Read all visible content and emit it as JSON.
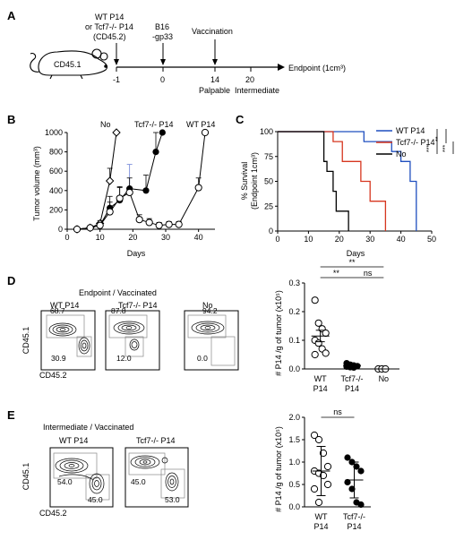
{
  "panel_letters": [
    "A",
    "B",
    "C",
    "D",
    "E"
  ],
  "panelA": {
    "mouse_label": "CD45.1",
    "timeline_labels": [
      {
        "day": -1,
        "top": [
          "WT P14",
          "or Tcf7-/- P14",
          "(CD45.2)"
        ],
        "bottom": "-1"
      },
      {
        "day": 0,
        "top": [
          "B16",
          "-gp33"
        ],
        "bottom": "0"
      },
      {
        "day": 14,
        "top": [
          "Vaccination"
        ],
        "bottom": "14",
        "below": "Palpable"
      },
      {
        "day": 20,
        "top": [],
        "bottom": "20",
        "below": "Intermediate"
      }
    ],
    "endpoint_label": "Endpoint (1cm³)"
  },
  "chart_data": [
    {
      "panel": "B",
      "type": "line",
      "xlabel": "Days",
      "ylabel": "Tumor volume (mm³)",
      "xlim": [
        0,
        45
      ],
      "ylim": [
        0,
        1000
      ],
      "xticks": [
        0,
        10,
        20,
        30,
        40
      ],
      "yticks": [
        0,
        200,
        400,
        600,
        800,
        1000
      ],
      "series_labels": [
        "No",
        "Tcf7-/- P14",
        "WT P14"
      ],
      "series": [
        {
          "name": "No",
          "marker": "diamond-open",
          "x": [
            3,
            7,
            10,
            13,
            15
          ],
          "y": [
            0,
            15,
            60,
            500,
            1000
          ],
          "err": [
            0,
            10,
            30,
            130,
            0
          ]
        },
        {
          "name": "Tcf7-/- P14",
          "marker": "circle-filled",
          "x": [
            3,
            7,
            10,
            13,
            16,
            19,
            24,
            27,
            29
          ],
          "y": [
            0,
            15,
            40,
            220,
            300,
            420,
            400,
            800,
            1000
          ],
          "err": [
            0,
            10,
            20,
            120,
            130,
            250,
            160,
            200,
            0
          ]
        },
        {
          "name": "WT P14",
          "marker": "circle-open",
          "x": [
            3,
            7,
            10,
            13,
            16,
            19,
            22,
            25,
            28,
            31,
            34,
            40,
            42
          ],
          "y": [
            0,
            15,
            40,
            180,
            320,
            380,
            100,
            70,
            40,
            50,
            50,
            430,
            1000
          ],
          "err": [
            0,
            10,
            20,
            100,
            120,
            150,
            50,
            40,
            30,
            30,
            30,
            100,
            0
          ]
        }
      ]
    },
    {
      "panel": "C",
      "type": "line",
      "xlabel": "Days",
      "ylabel": "% Survival (Endpoint 1cm³)",
      "xlim": [
        0,
        50
      ],
      "ylim": [
        0,
        100
      ],
      "xticks": [
        0,
        10,
        20,
        30,
        40,
        50
      ],
      "yticks": [
        0,
        25,
        50,
        75,
        100
      ],
      "legend": [
        "WT P14",
        "Tcf7-/- P14",
        "No"
      ],
      "significance": [
        "***",
        "**",
        "***"
      ],
      "series": [
        {
          "name": "WT P14",
          "color": "#1f4fbf",
          "steps": [
            [
              0,
              100
            ],
            [
              28,
              100
            ],
            [
              28,
              90
            ],
            [
              37,
              90
            ],
            [
              37,
              80
            ],
            [
              40,
              80
            ],
            [
              40,
              70
            ],
            [
              43,
              70
            ],
            [
              43,
              50
            ],
            [
              45,
              50
            ],
            [
              45,
              0
            ]
          ]
        },
        {
          "name": "Tcf7-/- P14",
          "color": "#d6361f",
          "steps": [
            [
              0,
              100
            ],
            [
              18,
              100
            ],
            [
              18,
              90
            ],
            [
              21,
              90
            ],
            [
              21,
              70
            ],
            [
              27,
              70
            ],
            [
              27,
              50
            ],
            [
              30,
              50
            ],
            [
              30,
              30
            ],
            [
              35,
              30
            ],
            [
              35,
              0
            ]
          ]
        },
        {
          "name": "No",
          "color": "#000000",
          "steps": [
            [
              0,
              100
            ],
            [
              15,
              100
            ],
            [
              15,
              70
            ],
            [
              16,
              70
            ],
            [
              16,
              60
            ],
            [
              18,
              60
            ],
            [
              18,
              40
            ],
            [
              19,
              40
            ],
            [
              19,
              20
            ],
            [
              23,
              20
            ],
            [
              23,
              0
            ]
          ]
        }
      ]
    },
    {
      "panel": "D",
      "type": "scatter",
      "ylabel": "# P14 /g of tumor (x10⁵)",
      "ylim": [
        0,
        0.3
      ],
      "yticks": [
        0.0,
        0.1,
        0.2,
        0.3
      ],
      "categories": [
        "WT P14",
        "Tcf7-/- P14",
        "No"
      ],
      "groups": [
        {
          "name": "WT P14",
          "marker": "open",
          "values": [
            0.24,
            0.16,
            0.14,
            0.125,
            0.1,
            0.09,
            0.07,
            0.055,
            0.05
          ],
          "mean": 0.115,
          "sem": 0.02
        },
        {
          "name": "Tcf7-/- P14",
          "marker": "filled",
          "values": [
            0.02,
            0.015,
            0.012,
            0.01,
            0.008,
            0.006,
            0.005
          ],
          "mean": 0.012,
          "sem": 0.004
        },
        {
          "name": "No",
          "marker": "open",
          "values": [
            0.0,
            0.0,
            0.0
          ],
          "mean": 0.0,
          "sem": 0.0
        }
      ],
      "significance": [
        {
          "pair": [
            "WT P14",
            "No"
          ],
          "label": "**"
        },
        {
          "pair": [
            "WT P14",
            "Tcf7-/- P14"
          ],
          "label": "**"
        },
        {
          "pair": [
            "Tcf7-/- P14",
            "No"
          ],
          "label": "ns"
        }
      ]
    },
    {
      "panel": "E",
      "type": "scatter",
      "ylabel": "# P14 /g of tumor (x10⁵)",
      "ylim": [
        0,
        2.0
      ],
      "yticks": [
        0.0,
        0.5,
        1.0,
        1.5,
        2.0
      ],
      "categories": [
        "WT P14",
        "Tcf7-/- P14"
      ],
      "groups": [
        {
          "name": "WT P14",
          "marker": "open",
          "values": [
            1.6,
            1.5,
            1.2,
            0.9,
            0.8,
            0.75,
            0.7,
            0.5,
            0.4,
            0.1
          ],
          "mean": 0.8,
          "sd": 0.55
        },
        {
          "name": "Tcf7-/- P14",
          "marker": "filled",
          "values": [
            1.1,
            1.0,
            0.9,
            0.8,
            0.55,
            0.4,
            0.1,
            0.05
          ],
          "mean": 0.6,
          "sd": 0.4
        }
      ],
      "significance": [
        {
          "pair": [
            "WT P14",
            "Tcf7-/- P14"
          ],
          "label": "ns"
        }
      ]
    }
  ],
  "panelD_flow": {
    "header": "Endpoint /  Vaccinated",
    "y_axis": "CD45.1",
    "x_axis": "CD45.2",
    "plots": [
      {
        "title": "WT P14",
        "top": "68.7",
        "bottom": "30.9"
      },
      {
        "title": "Tcf7-/- P14",
        "top": "87.8",
        "bottom": "12.0"
      },
      {
        "title": "No",
        "top": "94.2",
        "bottom": "0.0"
      }
    ]
  },
  "panelE_flow": {
    "header": "Intermediate / Vaccinated",
    "y_axis": "CD45.1",
    "x_axis": "CD45.2",
    "plots": [
      {
        "title": "WT P14",
        "top": "54.0",
        "bottom": "45.0"
      },
      {
        "title": "Tcf7-/- P14",
        "top": "45.0",
        "bottom": "53.0"
      }
    ]
  }
}
